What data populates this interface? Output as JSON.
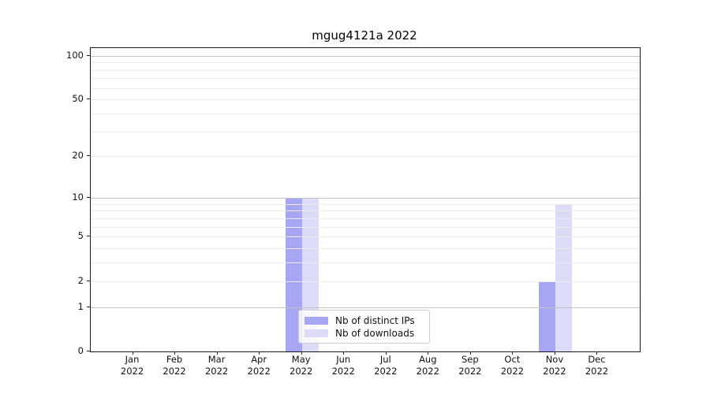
{
  "title": "mgug4121a 2022",
  "chart_data": {
    "type": "bar",
    "title": "mgug4121a 2022",
    "xlabel": "",
    "ylabel": "",
    "y_scale": "log1p",
    "categories": [
      "Jan",
      "Feb",
      "Mar",
      "Apr",
      "May",
      "Jun",
      "Jul",
      "Aug",
      "Sep",
      "Oct",
      "Nov",
      "Dec"
    ],
    "category_year": "2022",
    "series": [
      {
        "name": "Nb of distinct IPs",
        "color": "#a6a6f2",
        "values": [
          0,
          0,
          0,
          0,
          10,
          0,
          0,
          0,
          0,
          0,
          2,
          0
        ]
      },
      {
        "name": "Nb of downloads",
        "color": "#dcdcf8",
        "values": [
          0,
          0,
          0,
          0,
          10,
          0,
          0,
          0,
          0,
          0,
          9,
          0
        ]
      }
    ],
    "y_ticks": [
      0,
      1,
      2,
      5,
      10,
      20,
      50,
      100
    ],
    "y_major_gridlines": [
      1,
      10,
      100
    ],
    "y_minor_gridlines": [
      2,
      3,
      4,
      5,
      6,
      7,
      8,
      9,
      20,
      30,
      40,
      50,
      60,
      70,
      80,
      90
    ],
    "ylim": [
      0,
      113
    ],
    "grid": true,
    "legend_position": "lower center"
  },
  "colors": {
    "distinct_ips": "#a6a6f2",
    "downloads": "#dcdcf8",
    "grid_major": "#c3c3c3",
    "grid_minor": "#ececec",
    "spine": "#1a1a1a",
    "text": "#111111"
  }
}
